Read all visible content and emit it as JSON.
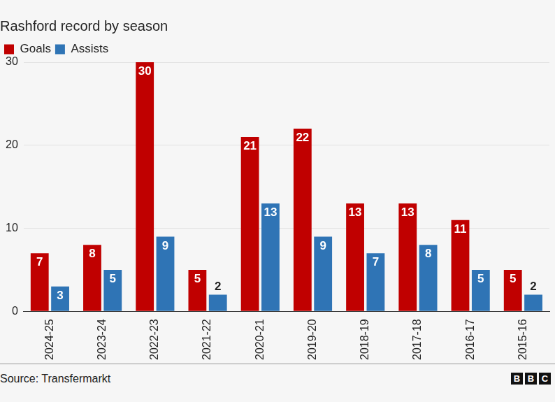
{
  "chart_data": {
    "type": "bar",
    "title": "Rashford record by season",
    "categories": [
      "2024-25",
      "2023-24",
      "2022-23",
      "2021-22",
      "2020-21",
      "2019-20",
      "2018-19",
      "2017-18",
      "2016-17",
      "2015-16"
    ],
    "series": [
      {
        "name": "Goals",
        "color": "#c00000",
        "values": [
          7,
          8,
          30,
          5,
          21,
          22,
          13,
          13,
          11,
          5
        ]
      },
      {
        "name": "Assists",
        "color": "#2f74b5",
        "values": [
          3,
          5,
          9,
          2,
          13,
          9,
          7,
          8,
          5,
          2
        ]
      }
    ],
    "ylim": [
      0,
      30
    ],
    "yticks": [
      0,
      10,
      20,
      30
    ],
    "grid": true,
    "legend": "top-left",
    "data_labels": true,
    "source": "Source: Transfermarkt",
    "logo": "BBC"
  }
}
